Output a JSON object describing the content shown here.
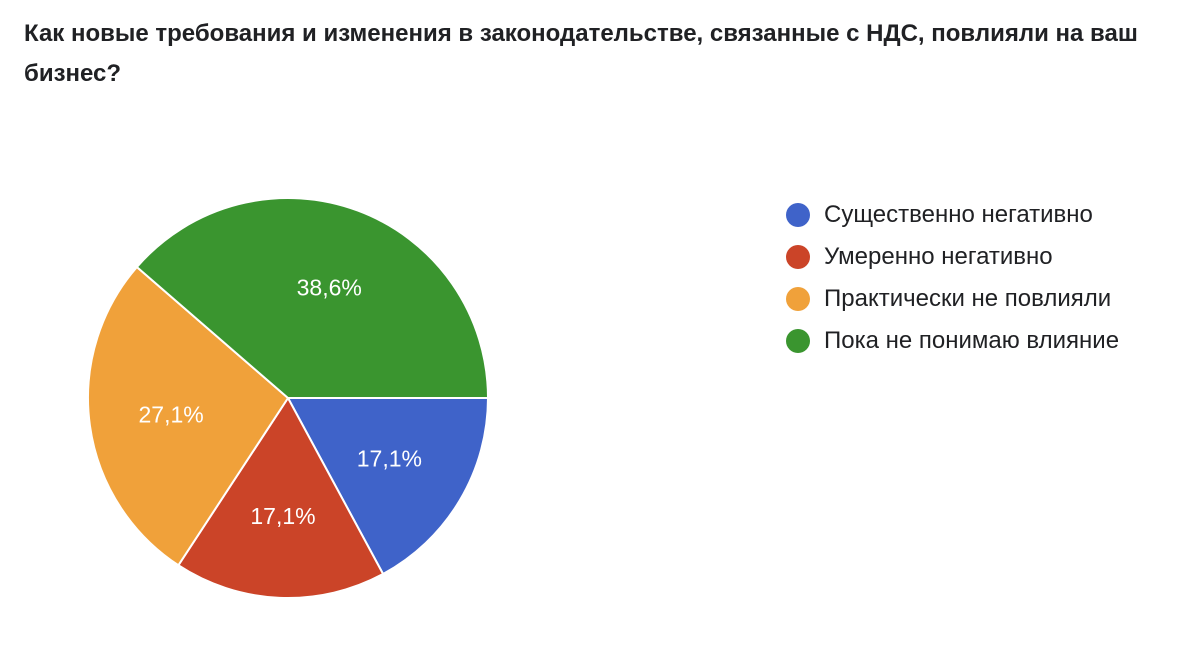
{
  "question": {
    "title": "Как новые требования и изменения в законодательстве, связанные с НДС, повлияли на ваш бизнес?"
  },
  "chart_data": {
    "type": "pie",
    "title": "",
    "categories": [
      "Существенно негативно",
      "Умеренно негативно",
      "Практически не повлияли",
      "Пока не понимаю влияние"
    ],
    "values": [
      17.1,
      17.1,
      27.1,
      38.6
    ],
    "value_labels": [
      "17,1%",
      "17,1%",
      "27,1%",
      "38,6%"
    ],
    "colors": [
      "#3f63c9",
      "#cb4428",
      "#f0a13a",
      "#3a952f"
    ],
    "legend_position": "right",
    "direction": "clockwise",
    "start_angle": "3 o'clock"
  }
}
